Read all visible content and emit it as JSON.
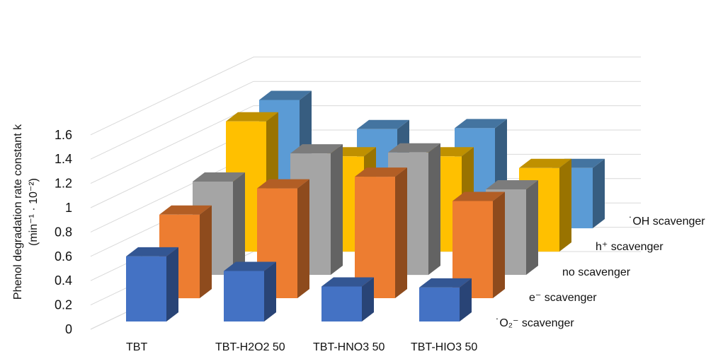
{
  "chart_data": {
    "type": "bar",
    "subtype": "3d-column",
    "categories": [
      "TBT",
      "TBT-H2O2  50",
      "TBT-HNO3  50",
      "TBT-HIO3  50"
    ],
    "series": [
      {
        "name": "˙O₂⁻ scavenger",
        "color": "#4472C4",
        "values": [
          0.67,
          0.52,
          0.36,
          0.35
        ]
      },
      {
        "name": "e⁻ scavenger",
        "color": "#ED7D31",
        "values": [
          0.86,
          1.13,
          1.25,
          1.0
        ]
      },
      {
        "name": "no scavenger",
        "color": "#A5A5A5",
        "values": [
          0.96,
          1.25,
          1.26,
          0.88
        ]
      },
      {
        "name": "h⁺ scavenger",
        "color": "#FFC000",
        "values": [
          1.34,
          0.98,
          0.98,
          0.86
        ]
      },
      {
        "name": "˙OH scavenger",
        "color": "#5B9BD5",
        "values": [
          1.32,
          1.02,
          1.03,
          0.62
        ]
      }
    ],
    "ylabel_line1": "Phenol degradation rate constant k",
    "ylabel_line2": "(min⁻¹ · 10⁻²)",
    "y_ticks": [
      "0",
      "0.2",
      "0.4",
      "0.6",
      "0.8",
      "1",
      "1.2",
      "1.4",
      "1.6"
    ],
    "ylim": [
      0,
      1.6
    ],
    "grid": true
  }
}
